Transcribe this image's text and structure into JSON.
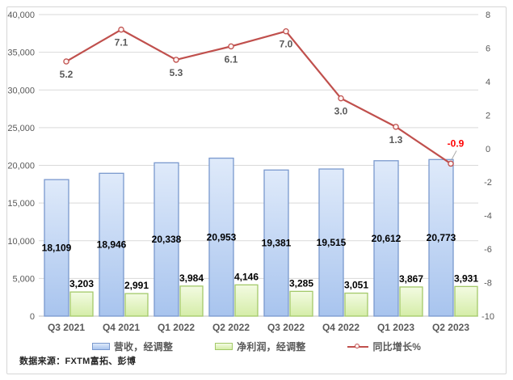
{
  "chart_data": {
    "type": "combo-bar-line",
    "title": "",
    "categories": [
      "Q3 2021",
      "Q4 2021",
      "Q1 2022",
      "Q2 2022",
      "Q3 2022",
      "Q4 2022",
      "Q1 2023",
      "Q2 2023"
    ],
    "series": [
      {
        "name": "营收，经调整",
        "type": "bar",
        "axis": "primary",
        "values": [
          18109,
          18946,
          20338,
          20953,
          19381,
          19515,
          20612,
          20773
        ],
        "labels": [
          "18,109",
          "18,946",
          "20,338",
          "20,953",
          "19,381",
          "19,515",
          "20,612",
          "20,773"
        ]
      },
      {
        "name": "净利润，经调整",
        "type": "bar",
        "axis": "primary",
        "values": [
          3203,
          2991,
          3984,
          4146,
          3285,
          3051,
          3867,
          3931
        ],
        "labels": [
          "3,203",
          "2,991",
          "3,984",
          "4,146",
          "3,285",
          "3,051",
          "3,867",
          "3,931"
        ]
      },
      {
        "name": "同比增长%",
        "type": "line",
        "axis": "secondary",
        "values": [
          5.2,
          7.1,
          5.3,
          6.1,
          7.0,
          3.0,
          1.3,
          -0.9
        ],
        "labels": [
          "5.2",
          "7.1",
          "5.3",
          "6.1",
          "7.0",
          "3.0",
          "1.3",
          "-0.9"
        ]
      }
    ],
    "primary_axis": {
      "min": 0,
      "max": 40000,
      "step": 5000,
      "tick_labels": [
        "0",
        "5,000",
        "10,000",
        "15,000",
        "20,000",
        "25,000",
        "30,000",
        "35,000",
        "40,000"
      ]
    },
    "secondary_axis": {
      "min": -10,
      "max": 8,
      "step": 2,
      "tick_labels": [
        "-10",
        "-8",
        "-6",
        "-4",
        "-2",
        "0",
        "2",
        "4",
        "6",
        "8"
      ]
    },
    "grid": true,
    "legend_position": "bottom"
  },
  "legend": {
    "items": [
      {
        "label": "营收，经调整",
        "swatch": "bar-blue"
      },
      {
        "label": "净利润，经调整",
        "swatch": "bar-green"
      },
      {
        "label": "同比增长%",
        "swatch": "line-red"
      }
    ]
  },
  "footer": {
    "source_label": "数据来源：FXTM富拓、彭博"
  },
  "colors": {
    "revenue_fill_top": "#dfeafa",
    "revenue_fill_bottom": "#a8c4ee",
    "revenue_border": "#7a99ce",
    "profit_fill_top": "#f3fbe2",
    "profit_fill_bottom": "#d5eda8",
    "profit_border": "#a3c969",
    "growth_line": "#c0504d",
    "marker_fill": "#fdf3f2",
    "negative_label": "#ff0000",
    "axis_text": "#595959",
    "value_label": "#000000",
    "gridline": "#d9d9d9",
    "axis_line": "#bfbfbf",
    "leader_line": "#a6a6a6"
  }
}
